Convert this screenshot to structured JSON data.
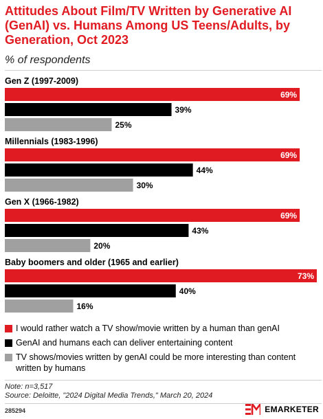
{
  "title": "Attitudes About Film/TV Written by Generative AI (GenAI) vs. Humans Among US Teens/Adults, by Generation, Oct 2023",
  "subtitle": "% of respondents",
  "colors": {
    "accent": "#e11b22",
    "series": [
      "#e11b22",
      "#000000",
      "#a0a0a0"
    ]
  },
  "chart_data": {
    "type": "bar",
    "orientation": "horizontal",
    "categories": [
      "Gen Z (1997-2009)",
      "Millennials (1983-1996)",
      "Gen X (1966-1982)",
      "Baby boomers and older (1965 and earlier)"
    ],
    "series": [
      {
        "name": "I would rather watch a TV show/movie written by a human than genAI",
        "values": [
          69,
          69,
          69,
          73
        ],
        "labels": [
          "69%",
          "69%",
          "69%",
          "73%"
        ]
      },
      {
        "name": "GenAI and humans each can deliver entertaining content",
        "values": [
          39,
          44,
          43,
          40
        ],
        "labels": [
          "39%",
          "44%",
          "43%",
          "40%"
        ]
      },
      {
        "name": "TV shows/movies written by genAI could be more interesting than content written by humans",
        "values": [
          25,
          30,
          20,
          16
        ],
        "labels": [
          "25%",
          "30%",
          "20%",
          "16%"
        ]
      }
    ],
    "xlim": [
      0,
      73
    ],
    "unit": "%"
  },
  "note": "Note: n=3,517",
  "source": "Source: Deloitte, \"2024 Digital Media Trends,\" March 20, 2024",
  "chart_code": "285294",
  "brand": {
    "name": "EMARKETER",
    "icon": "emarketer-logo-icon"
  }
}
